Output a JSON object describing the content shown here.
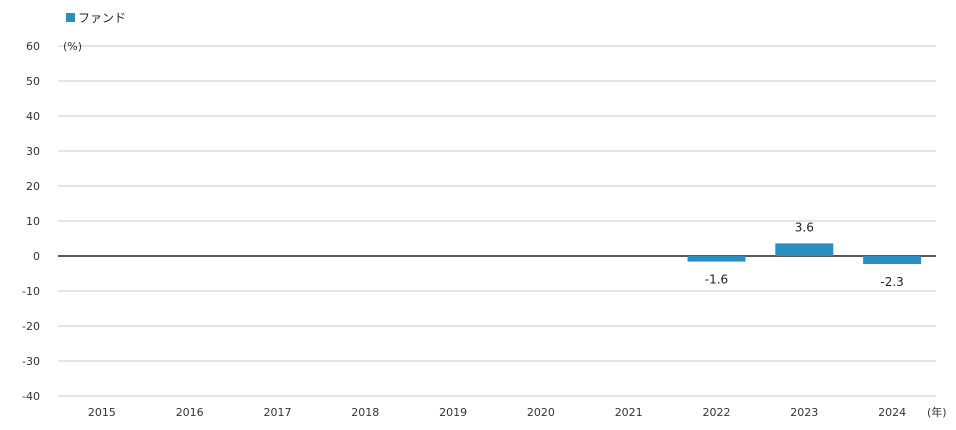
{
  "chart_data": {
    "type": "bar",
    "categories": [
      "2015",
      "2016",
      "2017",
      "2018",
      "2019",
      "2020",
      "2021",
      "2022",
      "2023",
      "2024"
    ],
    "series": [
      {
        "name": "ファンド",
        "values": [
          null,
          null,
          null,
          null,
          null,
          null,
          null,
          -1.6,
          3.6,
          -2.3
        ],
        "color": "#2a8fc0"
      }
    ],
    "data_labels": [
      "",
      "",
      "",
      "",
      "",
      "",
      "",
      "-1.6",
      "3.6",
      "-2.3"
    ],
    "y_ticks": [
      "60",
      "50",
      "40",
      "30",
      "20",
      "10",
      "0",
      "-10",
      "-20",
      "-30",
      "-40"
    ],
    "ylim": [
      -40,
      60
    ],
    "y_unit": "(%)",
    "x_unit": "(年)",
    "grid": true,
    "legend_position": "top-left"
  }
}
